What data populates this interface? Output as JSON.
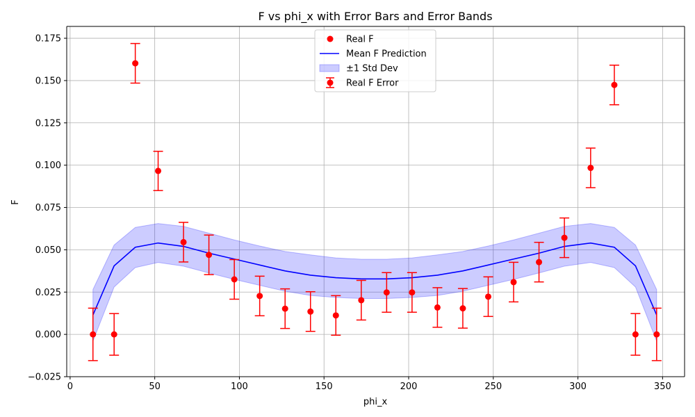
{
  "chart_data": {
    "type": "scatter",
    "title": "F vs phi_x with Error Bars and Error Bands",
    "xlabel": "phi_x",
    "ylabel": "F",
    "xlim": [
      -2,
      363
    ],
    "ylim": [
      -0.025,
      0.182
    ],
    "xticks": [
      0,
      50,
      100,
      150,
      200,
      250,
      300,
      350
    ],
    "xtick_labels": [
      "0",
      "50",
      "100",
      "150",
      "200",
      "250",
      "300",
      "350"
    ],
    "yticks": [
      -0.025,
      0.0,
      0.025,
      0.05,
      0.075,
      0.1,
      0.125,
      0.15,
      0.175
    ],
    "ytick_labels": [
      "−0.025",
      "0.000",
      "0.025",
      "0.050",
      "0.075",
      "0.100",
      "0.125",
      "0.150",
      "0.175"
    ],
    "grid": true,
    "legend_position": "top-center",
    "legend": [
      {
        "label": "Real F",
        "kind": "marker",
        "color": "#ff0000"
      },
      {
        "label": "Mean F Prediction",
        "kind": "line",
        "color": "#0000ff"
      },
      {
        "label": "±1 Std Dev",
        "kind": "band",
        "color": "#0000ff"
      },
      {
        "label": "Real F Error",
        "kind": "errorbar",
        "color": "#ff0000"
      }
    ],
    "series": [
      {
        "name": "Real F",
        "kind": "errorbar",
        "color": "#ff0000",
        "x": [
          13.5,
          26,
          38.5,
          52,
          67,
          82,
          97,
          112,
          127,
          142,
          157,
          172,
          187,
          202,
          217,
          232,
          247,
          262,
          277,
          292,
          307.5,
          321.5,
          334,
          346.5
        ],
        "y": [
          0.0,
          0.0,
          0.1602,
          0.0966,
          0.0545,
          0.047,
          0.0325,
          0.0227,
          0.0152,
          0.0135,
          0.0112,
          0.0202,
          0.0248,
          0.0248,
          0.0159,
          0.0154,
          0.0223,
          0.0309,
          0.0427,
          0.0571,
          0.0984,
          0.1474,
          0.0,
          0.0
        ],
        "yerr": [
          0.0155,
          0.0123,
          0.0117,
          0.0116,
          0.0117,
          0.0117,
          0.0117,
          0.0117,
          0.0117,
          0.0117,
          0.0117,
          0.0117,
          0.0117,
          0.0117,
          0.0117,
          0.0117,
          0.0117,
          0.0117,
          0.0117,
          0.0117,
          0.0117,
          0.0117,
          0.0123,
          0.0155
        ]
      },
      {
        "name": "Mean F Prediction",
        "kind": "line",
        "color": "#0000ff",
        "x": [
          13.5,
          26,
          38.5,
          52,
          67,
          82,
          97,
          112,
          127,
          142,
          157,
          172,
          187,
          202,
          217,
          232,
          247,
          262,
          277,
          292,
          307.5,
          321.5,
          334,
          346.5
        ],
        "y": [
          0.0115,
          0.0405,
          0.0515,
          0.054,
          0.052,
          0.048,
          0.0445,
          0.041,
          0.0375,
          0.035,
          0.0335,
          0.0328,
          0.0328,
          0.0335,
          0.035,
          0.0375,
          0.041,
          0.0445,
          0.048,
          0.052,
          0.054,
          0.0515,
          0.0405,
          0.0115
        ]
      },
      {
        "name": "±1 Std Dev",
        "kind": "band",
        "color": "#0000ff",
        "x": [
          13.5,
          26,
          38.5,
          52,
          67,
          82,
          97,
          112,
          127,
          142,
          157,
          172,
          187,
          202,
          217,
          232,
          247,
          262,
          277,
          292,
          307.5,
          321.5,
          334,
          346.5
        ],
        "lower": [
          -0.004,
          0.028,
          0.0395,
          0.0425,
          0.0403,
          0.0363,
          0.0325,
          0.029,
          0.0255,
          0.023,
          0.0218,
          0.0212,
          0.0212,
          0.0218,
          0.023,
          0.0255,
          0.029,
          0.0325,
          0.0363,
          0.0403,
          0.0425,
          0.0395,
          0.028,
          -0.004
        ],
        "upper": [
          0.0265,
          0.0528,
          0.0632,
          0.0655,
          0.0638,
          0.0598,
          0.0558,
          0.0522,
          0.049,
          0.047,
          0.0452,
          0.0444,
          0.0444,
          0.0452,
          0.047,
          0.049,
          0.0522,
          0.0558,
          0.0598,
          0.0638,
          0.0655,
          0.0632,
          0.0528,
          0.0265
        ]
      }
    ]
  }
}
